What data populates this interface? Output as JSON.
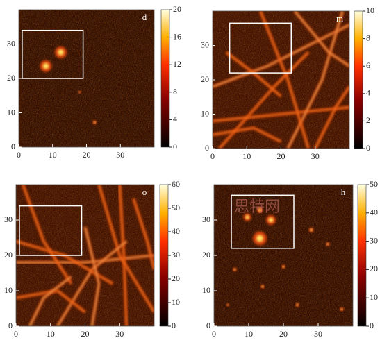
{
  "chart_data": [
    {
      "type": "heatmap",
      "title": "d",
      "colormap": "hot",
      "xlim": [
        0,
        40
      ],
      "ylim": [
        0,
        40
      ],
      "xticks": [
        0,
        10,
        20,
        30
      ],
      "yticks": [
        0,
        10,
        20,
        30
      ],
      "clim": [
        0,
        20
      ],
      "cticks": [
        0,
        4,
        8,
        12,
        16,
        20
      ],
      "highlight_box": {
        "x": [
          1,
          19
        ],
        "y": [
          20,
          34
        ]
      }
    },
    {
      "type": "heatmap",
      "title": "m",
      "colormap": "hot",
      "xlim": [
        0,
        40
      ],
      "ylim": [
        0,
        40
      ],
      "xticks": [
        0,
        10,
        20,
        30
      ],
      "yticks": [
        0,
        10,
        20,
        30
      ],
      "clim": [
        0,
        10
      ],
      "cticks": [
        0,
        2,
        4,
        6,
        8,
        10
      ],
      "highlight_box": {
        "x": [
          5,
          23
        ],
        "y": [
          22,
          36.5
        ]
      }
    },
    {
      "type": "heatmap",
      "title": "o",
      "colormap": "hot",
      "xlim": [
        0,
        40
      ],
      "ylim": [
        0,
        40
      ],
      "xticks": [
        0,
        10,
        20,
        30
      ],
      "yticks": [
        0,
        10,
        20,
        30
      ],
      "clim": [
        0,
        60
      ],
      "cticks": [
        0,
        10,
        20,
        30,
        40,
        50,
        60
      ],
      "highlight_box": {
        "x": [
          1,
          19
        ],
        "y": [
          20,
          34
        ]
      }
    },
    {
      "type": "heatmap",
      "title": "h",
      "colormap": "hot",
      "xlim": [
        0,
        40
      ],
      "ylim": [
        0,
        40
      ],
      "xticks": [
        0,
        10,
        20,
        30
      ],
      "yticks": [
        0,
        10,
        20,
        30
      ],
      "clim": [
        0,
        50
      ],
      "cticks": [
        0,
        10,
        20,
        30,
        40,
        50
      ],
      "highlight_box": {
        "x": [
          5,
          23
        ],
        "y": [
          22,
          37
        ]
      }
    }
  ],
  "watermark": "思特网"
}
